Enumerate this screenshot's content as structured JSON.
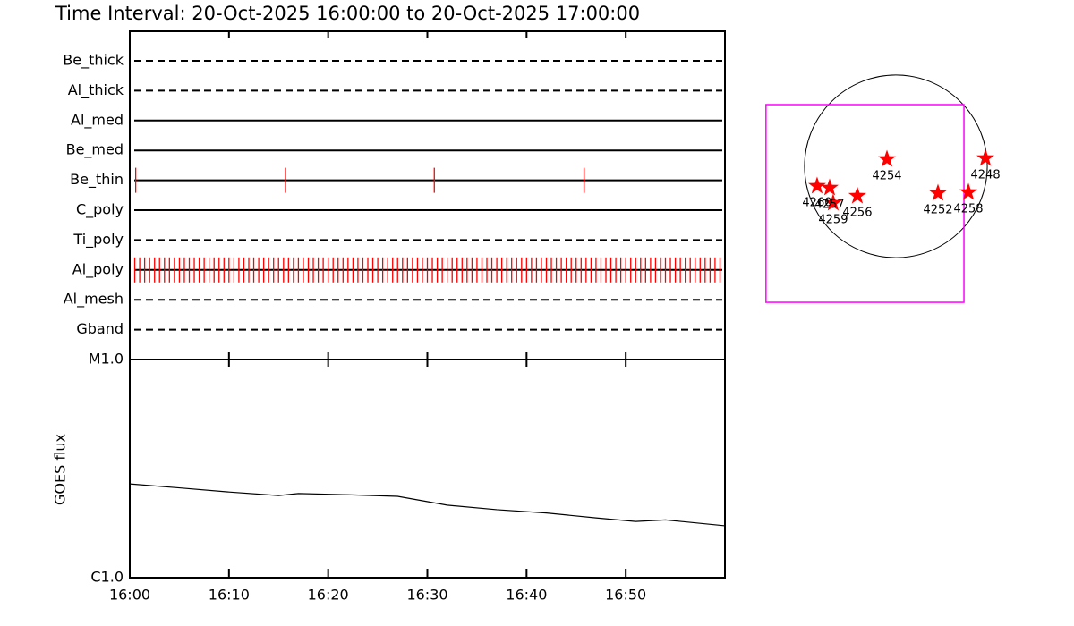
{
  "chart_data": [
    {
      "type": "timeline",
      "title": "Time Interval: 20-Oct-2025 16:00:00 to 20-Oct-2025 17:00:00",
      "xlim": [
        0,
        60
      ],
      "event_color": "#ff0000",
      "rows": [
        {
          "name": "Be_thick",
          "style": "dashed",
          "events": []
        },
        {
          "name": "Al_thick",
          "style": "dashed",
          "events": []
        },
        {
          "name": "Al_med",
          "style": "solid",
          "events": []
        },
        {
          "name": "Be_med",
          "style": "solid",
          "events": []
        },
        {
          "name": "Be_thin",
          "style": "solid",
          "events": [
            0.6,
            15.7,
            30.7,
            45.8
          ]
        },
        {
          "name": "C_poly",
          "style": "solid",
          "events": []
        },
        {
          "name": "Ti_poly",
          "style": "dashed",
          "events": []
        },
        {
          "name": "Al_poly",
          "style": "solid",
          "events": [
            0.5,
            1,
            1.5,
            2,
            2.5,
            3,
            3.5,
            4,
            4.5,
            5,
            5.5,
            6,
            6.5,
            7,
            7.5,
            8,
            8.5,
            9,
            9.5,
            10,
            10.5,
            11,
            11.5,
            12,
            12.5,
            13,
            13.5,
            14,
            14.5,
            15,
            15.5,
            16,
            16.5,
            17,
            17.5,
            18,
            18.5,
            19,
            19.5,
            20,
            20.5,
            21,
            21.5,
            22,
            22.5,
            23,
            23.5,
            24,
            24.5,
            25,
            25.5,
            26,
            26.5,
            27,
            27.5,
            28,
            28.5,
            29,
            29.5,
            30,
            30.5,
            31,
            31.5,
            32,
            32.5,
            33,
            33.5,
            34,
            34.5,
            35,
            35.5,
            36,
            36.5,
            37,
            37.5,
            38,
            38.5,
            39,
            39.5,
            40,
            40.5,
            41,
            41.5,
            42,
            42.5,
            43,
            43.5,
            44,
            44.5,
            45,
            45.5,
            46,
            46.5,
            47,
            47.5,
            48,
            48.5,
            49,
            49.5,
            50,
            50.5,
            51,
            51.5,
            52,
            52.5,
            53,
            53.5,
            54,
            54.5,
            55,
            55.5,
            56,
            56.5,
            57,
            57.5,
            58,
            58.5,
            59,
            59.5
          ]
        },
        {
          "name": "Al_mesh",
          "style": "dashed",
          "events": []
        },
        {
          "name": "Gband",
          "style": "dashed",
          "events": []
        }
      ]
    },
    {
      "type": "line",
      "ylabel": "GOES flux",
      "color": "#000000",
      "log_y": true,
      "x": [
        0,
        5,
        10,
        15,
        17,
        22,
        27,
        32,
        37,
        42,
        47,
        51,
        54,
        60
      ],
      "values": [
        2.69e-06,
        2.58e-06,
        2.47e-06,
        2.38e-06,
        2.43e-06,
        2.4e-06,
        2.36e-06,
        2.15e-06,
        2.05e-06,
        1.98e-06,
        1.88e-06,
        1.81e-06,
        1.84e-06,
        1.73e-06
      ],
      "xlim": [
        0,
        60
      ],
      "xticks": [
        {
          "value": 0,
          "label": "16:00"
        },
        {
          "value": 10,
          "label": "16:10"
        },
        {
          "value": 20,
          "label": "16:20"
        },
        {
          "value": 30,
          "label": "16:30"
        },
        {
          "value": 40,
          "label": "16:40"
        },
        {
          "value": 50,
          "label": "16:50"
        }
      ],
      "ylim": [
        1e-06,
        1e-05
      ],
      "yticks": [
        {
          "value": 1e-06,
          "label": "C1.0"
        },
        {
          "value": 1e-05,
          "label": "M1.0"
        }
      ]
    },
    {
      "type": "scatter",
      "color": "#ff0000",
      "labels": [
        "4254",
        "4248",
        "4252",
        "4258",
        "4256",
        "4259",
        "4257",
        "4260"
      ],
      "x": [
        -94,
        941,
        442,
        762,
        -405,
        -659,
        -696,
        -828
      ],
      "y": [
        75,
        85,
        -282,
        -273,
        -311,
        -386,
        -226,
        -207
      ],
      "xlim": [
        -1500,
        1500
      ],
      "ylim": [
        -1500,
        1500
      ],
      "disk_radius": 960,
      "fov": {
        "x": [
          -1365,
          715
        ],
        "y": [
          -1430,
          649
        ],
        "color": "#ff00ff"
      }
    }
  ]
}
